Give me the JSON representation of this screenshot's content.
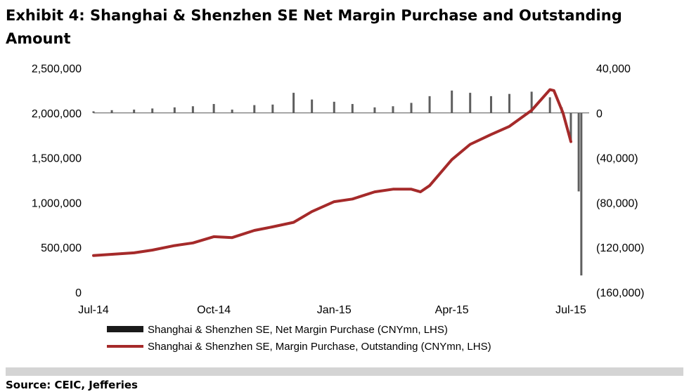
{
  "exhibit": {
    "title": "Exhibit 4: Shanghai & Shenzhen SE Net Margin Purchase and Outstanding Amount",
    "source": "Source: CEIC, Jefferies"
  },
  "colors": {
    "bars": "#5f5f5f",
    "line": "#a52a2a",
    "footer_bar": "#d4d4d4"
  },
  "chart_data": {
    "type": "bar+line",
    "title": "Exhibit 4: Shanghai & Shenzhen SE Net Margin Purchase and Outstanding Amount",
    "x_labels": [
      "Jul-14",
      "Oct-14",
      "Jan-15",
      "Apr-15",
      "Jul-15"
    ],
    "x_label_dates": [
      "2014-07-01",
      "2014-10-01",
      "2015-01-01",
      "2015-04-01",
      "2015-07-01"
    ],
    "x_range": [
      "2014-07-01",
      "2015-07-15"
    ],
    "y_left": {
      "ticks": [
        "2,500,000",
        "2,000,000",
        "1,500,000",
        "1,000,000",
        "500,000",
        "0"
      ],
      "range": [
        0,
        2500000
      ]
    },
    "y_right": {
      "ticks": [
        "40,000",
        "0",
        "(40,000)",
        "(80,000)",
        "(120,000)",
        "(160,000)"
      ],
      "range": [
        -160000,
        40000
      ]
    },
    "legend": [
      {
        "label": "Shanghai & Shenzhen SE, Net Margin Purchase (CNYmn, LHS)",
        "type": "bar"
      },
      {
        "label": "Shanghai & Shenzhen SE, Margin Purchase, Outstanding (CNYmn, LHS)",
        "type": "line"
      }
    ],
    "grid": false,
    "series": [
      {
        "name": "Shanghai & Shenzhen SE, Net Margin Purchase (CNYmn, LHS)",
        "type": "bar",
        "axis": "right",
        "points": [
          [
            "2014-07-01",
            1500
          ],
          [
            "2014-07-15",
            2500
          ],
          [
            "2014-08-01",
            3000
          ],
          [
            "2014-08-15",
            4000
          ],
          [
            "2014-09-01",
            5000
          ],
          [
            "2014-09-15",
            6000
          ],
          [
            "2014-10-01",
            8000
          ],
          [
            "2014-10-15",
            3000
          ],
          [
            "2014-11-01",
            7000
          ],
          [
            "2014-11-15",
            7500
          ],
          [
            "2014-12-01",
            18000
          ],
          [
            "2014-12-15",
            12000
          ],
          [
            "2015-01-01",
            10000
          ],
          [
            "2015-01-15",
            8000
          ],
          [
            "2015-02-01",
            5000
          ],
          [
            "2015-02-15",
            6000
          ],
          [
            "2015-03-01",
            9000
          ],
          [
            "2015-03-15",
            15000
          ],
          [
            "2015-04-01",
            20000
          ],
          [
            "2015-04-15",
            18000
          ],
          [
            "2015-05-01",
            15000
          ],
          [
            "2015-05-15",
            17000
          ],
          [
            "2015-06-01",
            19000
          ],
          [
            "2015-06-15",
            14000
          ],
          [
            "2015-06-24",
            5000
          ],
          [
            "2015-07-01",
            -25000
          ],
          [
            "2015-07-07",
            -70000
          ],
          [
            "2015-07-09",
            -145000
          ]
        ]
      },
      {
        "name": "Shanghai & Shenzhen SE, Margin Purchase, Outstanding (CNYmn, LHS)",
        "type": "line",
        "axis": "left",
        "points": [
          [
            "2014-07-01",
            410000
          ],
          [
            "2014-08-01",
            440000
          ],
          [
            "2014-08-15",
            470000
          ],
          [
            "2014-09-01",
            520000
          ],
          [
            "2014-09-15",
            550000
          ],
          [
            "2014-10-01",
            620000
          ],
          [
            "2014-10-15",
            610000
          ],
          [
            "2014-11-01",
            690000
          ],
          [
            "2014-11-15",
            730000
          ],
          [
            "2014-12-01",
            780000
          ],
          [
            "2014-12-15",
            900000
          ],
          [
            "2015-01-01",
            1010000
          ],
          [
            "2015-01-15",
            1040000
          ],
          [
            "2015-02-01",
            1120000
          ],
          [
            "2015-02-15",
            1150000
          ],
          [
            "2015-03-01",
            1150000
          ],
          [
            "2015-03-08",
            1120000
          ],
          [
            "2015-03-15",
            1190000
          ],
          [
            "2015-04-01",
            1480000
          ],
          [
            "2015-04-15",
            1650000
          ],
          [
            "2015-05-01",
            1760000
          ],
          [
            "2015-05-15",
            1850000
          ],
          [
            "2015-06-01",
            2030000
          ],
          [
            "2015-06-15",
            2260000
          ],
          [
            "2015-06-18",
            2250000
          ],
          [
            "2015-06-25",
            2000000
          ],
          [
            "2015-07-01",
            1680000
          ]
        ]
      }
    ]
  }
}
